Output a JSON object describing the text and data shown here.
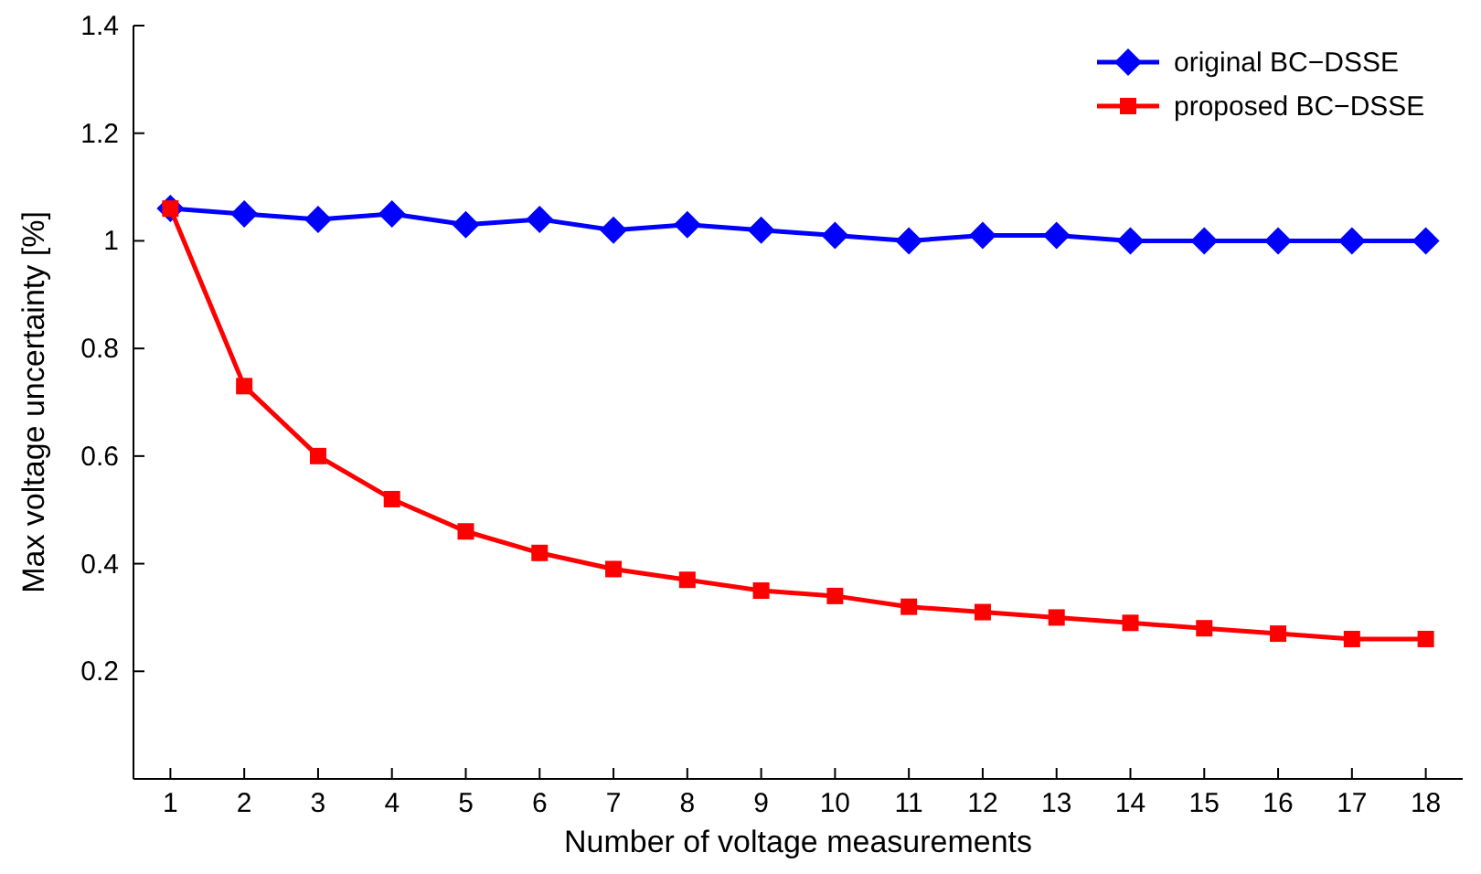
{
  "chart_data": {
    "type": "line",
    "xlabel": "Number of voltage measurements",
    "ylabel": "Max voltage uncertainty [%]",
    "x": [
      1,
      2,
      3,
      4,
      5,
      6,
      7,
      8,
      9,
      10,
      11,
      12,
      13,
      14,
      15,
      16,
      17,
      18
    ],
    "xlim": [
      0.5,
      18.5
    ],
    "xticks": [
      1,
      2,
      3,
      4,
      5,
      6,
      7,
      8,
      9,
      10,
      11,
      12,
      13,
      14,
      15,
      16,
      17,
      18
    ],
    "ylim": [
      0,
      1.4
    ],
    "yticks": [
      0.2,
      0.4,
      0.6,
      0.8,
      1,
      1.2,
      1.4
    ],
    "grid": false,
    "legend": "top right",
    "line_style": "solid",
    "series": [
      {
        "name": "original BC−DSSE",
        "color": "#0000ff",
        "marker": "diamond",
        "values": [
          1.06,
          1.05,
          1.04,
          1.05,
          1.03,
          1.04,
          1.02,
          1.03,
          1.02,
          1.01,
          1.0,
          1.01,
          1.01,
          1.0,
          1.0,
          1.0,
          1.0,
          1.0
        ]
      },
      {
        "name": "proposed BC−DSSE",
        "color": "#ff0000",
        "marker": "square",
        "values": [
          1.06,
          0.73,
          0.6,
          0.52,
          0.46,
          0.42,
          0.39,
          0.37,
          0.35,
          0.34,
          0.32,
          0.31,
          0.3,
          0.29,
          0.28,
          0.27,
          0.26,
          0.26
        ]
      }
    ]
  }
}
